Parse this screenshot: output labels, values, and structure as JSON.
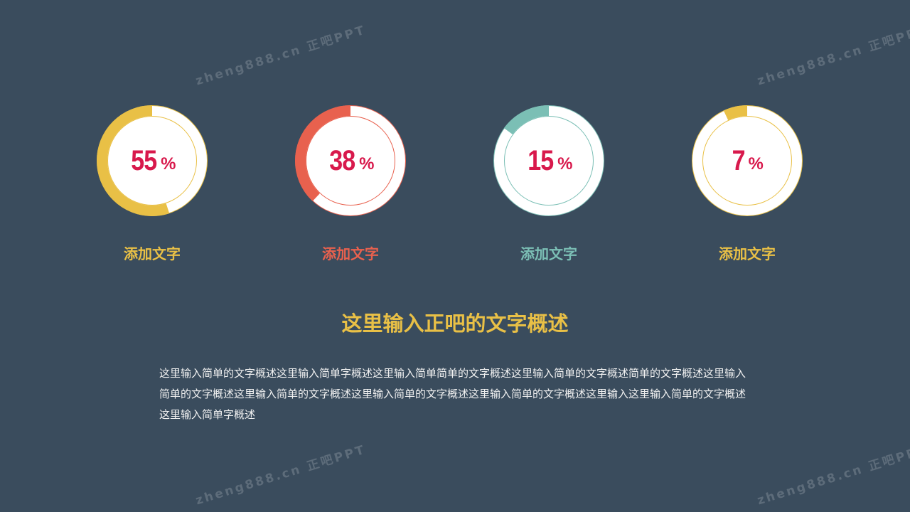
{
  "watermark": "zheng888.cn 正吧PPT",
  "colors": {
    "background": "#3a4c5d",
    "yellow": "#e9c046",
    "red": "#e8614e",
    "teal": "#7bbfb5",
    "number": "#d8194c"
  },
  "items": [
    {
      "value": 55,
      "percent_sign": "%",
      "label": "添加文字",
      "color": "#e9c046"
    },
    {
      "value": 38,
      "percent_sign": "%",
      "label": "添加文字",
      "color": "#e8614e"
    },
    {
      "value": 15,
      "percent_sign": "%",
      "label": "添加文字",
      "color": "#7bbfb5"
    },
    {
      "value": 7,
      "percent_sign": "%",
      "label": "添加文字",
      "color": "#e9c046"
    }
  ],
  "title": "这里输入正吧的文字概述",
  "paragraph": "这里输入简单的文字概述这里输入简单字概述这里输入简单简单的文字概述这里输入简单的文字概述简单的文字概述这里输入简单的文字概述这里输入简单的文字概述这里输入简单的文字概述这里输入简单的文字概述这里输入这里输入简单的文字概述这里输入简单字概述"
}
